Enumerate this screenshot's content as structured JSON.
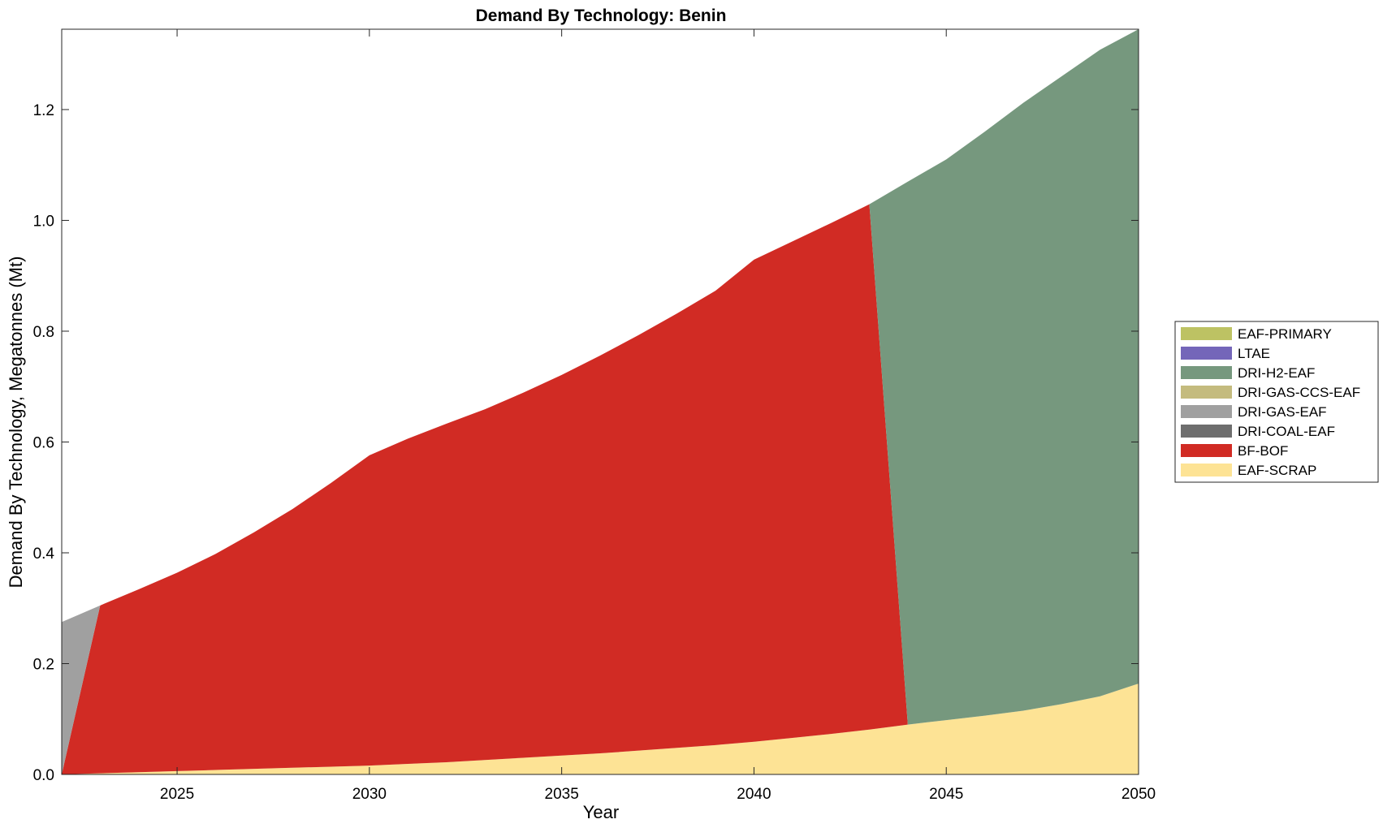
{
  "chart_data": {
    "type": "area",
    "stacked": true,
    "title": "Demand By Technology: Benin",
    "xlabel": "Year",
    "ylabel": "Demand By Technology, Megatonnes (Mt)",
    "xlim": [
      2022,
      2050
    ],
    "ylim": [
      0,
      1.345
    ],
    "xticks": [
      2025,
      2030,
      2035,
      2040,
      2045,
      2050
    ],
    "yticks": [
      0.0,
      0.2,
      0.4,
      0.6,
      0.8,
      1.0,
      1.2
    ],
    "ytick_labels": [
      "0.0",
      "0.2",
      "0.4",
      "0.6",
      "0.8",
      "1.0",
      "1.2"
    ],
    "grid": false,
    "legend_position": "right",
    "x": [
      2022,
      2023,
      2024,
      2025,
      2026,
      2027,
      2028,
      2029,
      2030,
      2031,
      2032,
      2033,
      2034,
      2035,
      2036,
      2037,
      2038,
      2039,
      2040,
      2041,
      2042,
      2043,
      2044,
      2045,
      2046,
      2047,
      2048,
      2049,
      2050
    ],
    "series": [
      {
        "name": "EAF-SCRAP",
        "color": "#fde395",
        "values": [
          0.0,
          0.002,
          0.004,
          0.006,
          0.008,
          0.01,
          0.012,
          0.014,
          0.016,
          0.019,
          0.022,
          0.026,
          0.03,
          0.034,
          0.038,
          0.043,
          0.048,
          0.053,
          0.059,
          0.066,
          0.073,
          0.081,
          0.09,
          0.098,
          0.106,
          0.115,
          0.127,
          0.141,
          0.164
        ]
      },
      {
        "name": "BF-BOF",
        "color": "#d12b24",
        "values": [
          0.0,
          0.303,
          0.33,
          0.358,
          0.39,
          0.427,
          0.467,
          0.512,
          0.56,
          0.587,
          0.611,
          0.633,
          0.659,
          0.687,
          0.718,
          0.75,
          0.784,
          0.82,
          0.87,
          0.896,
          0.922,
          0.948,
          0.0,
          0.0,
          0.0,
          0.0,
          0.0,
          0.0,
          0.0
        ]
      },
      {
        "name": "DRI-COAL-EAF",
        "color": "#6e6e6e",
        "values": [
          0.0,
          0.0,
          0.0,
          0.0,
          0.0,
          0.0,
          0.0,
          0.0,
          0.0,
          0.0,
          0.0,
          0.0,
          0.0,
          0.0,
          0.0,
          0.0,
          0.0,
          0.0,
          0.0,
          0.0,
          0.0,
          0.0,
          0.0,
          0.0,
          0.0,
          0.0,
          0.0,
          0.0,
          0.0
        ]
      },
      {
        "name": "DRI-GAS-EAF",
        "color": "#a0a0a0",
        "values": [
          0.275,
          0.0,
          0.0,
          0.0,
          0.0,
          0.0,
          0.0,
          0.0,
          0.0,
          0.0,
          0.0,
          0.0,
          0.0,
          0.0,
          0.0,
          0.0,
          0.0,
          0.0,
          0.0,
          0.0,
          0.0,
          0.0,
          0.0,
          0.0,
          0.0,
          0.0,
          0.0,
          0.0,
          0.0
        ]
      },
      {
        "name": "DRI-GAS-CCS-EAF",
        "color": "#c4bb7e",
        "values": [
          0.0,
          0.0,
          0.0,
          0.0,
          0.0,
          0.0,
          0.0,
          0.0,
          0.0,
          0.0,
          0.0,
          0.0,
          0.0,
          0.0,
          0.0,
          0.0,
          0.0,
          0.0,
          0.0,
          0.0,
          0.0,
          0.0,
          0.0,
          0.0,
          0.0,
          0.0,
          0.0,
          0.0,
          0.0
        ]
      },
      {
        "name": "DRI-H2-EAF",
        "color": "#76987e",
        "values": [
          0.0,
          0.0,
          0.0,
          0.0,
          0.0,
          0.0,
          0.0,
          0.0,
          0.0,
          0.0,
          0.0,
          0.0,
          0.0,
          0.0,
          0.0,
          0.0,
          0.0,
          0.0,
          0.0,
          0.0,
          0.0,
          0.0,
          0.98,
          1.012,
          1.054,
          1.097,
          1.133,
          1.167,
          1.181
        ]
      },
      {
        "name": "LTAE",
        "color": "#7466b9",
        "values": [
          0.0,
          0.0,
          0.0,
          0.0,
          0.0,
          0.0,
          0.0,
          0.0,
          0.0,
          0.0,
          0.0,
          0.0,
          0.0,
          0.0,
          0.0,
          0.0,
          0.0,
          0.0,
          0.0,
          0.0,
          0.0,
          0.0,
          0.0,
          0.0,
          0.0,
          0.0,
          0.0,
          0.0,
          0.0
        ]
      },
      {
        "name": "EAF-PRIMARY",
        "color": "#bdc263",
        "values": [
          0.0,
          0.0,
          0.0,
          0.0,
          0.0,
          0.0,
          0.0,
          0.0,
          0.0,
          0.0,
          0.0,
          0.0,
          0.0,
          0.0,
          0.0,
          0.0,
          0.0,
          0.0,
          0.0,
          0.0,
          0.0,
          0.0,
          0.0,
          0.0,
          0.0,
          0.0,
          0.0,
          0.0,
          0.0
        ]
      }
    ],
    "legend_order": [
      "EAF-PRIMARY",
      "LTAE",
      "DRI-H2-EAF",
      "DRI-GAS-CCS-EAF",
      "DRI-GAS-EAF",
      "DRI-COAL-EAF",
      "BF-BOF",
      "EAF-SCRAP"
    ]
  }
}
